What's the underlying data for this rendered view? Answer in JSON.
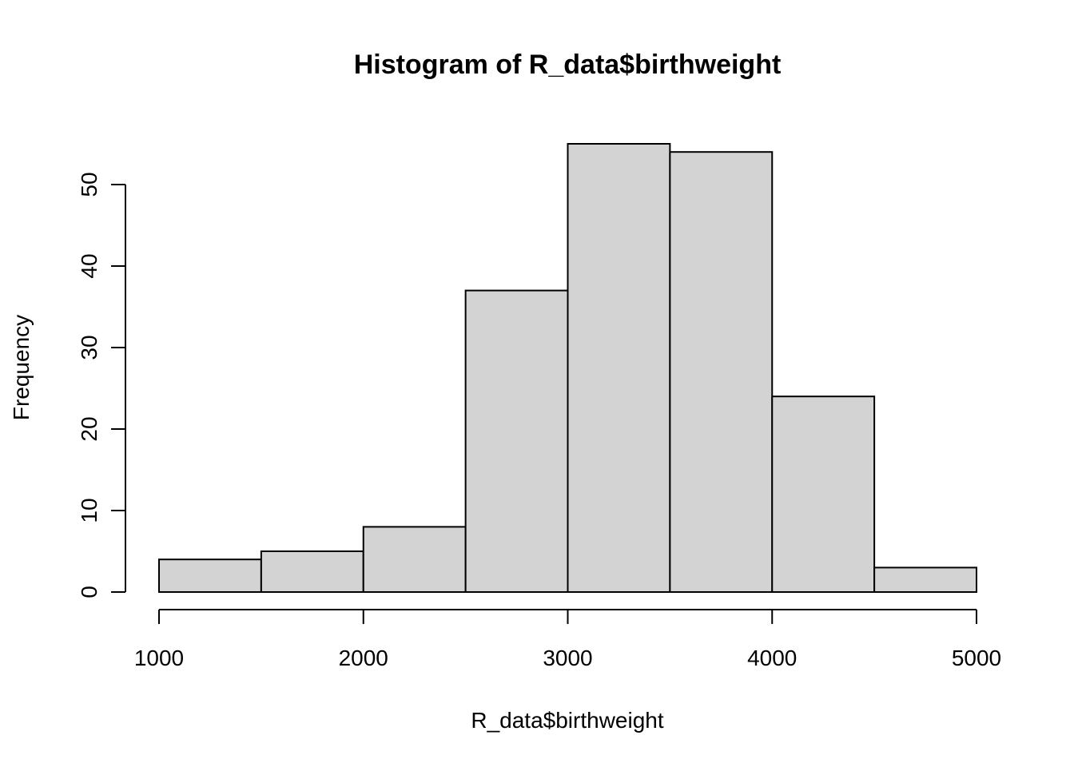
{
  "chart_data": {
    "type": "bar",
    "title": "Histogram of R_data$birthweight",
    "xlabel": "R_data$birthweight",
    "ylabel": "Frequency",
    "bin_edges": [
      1000,
      1500,
      2000,
      2500,
      3000,
      3500,
      4000,
      4500,
      5000
    ],
    "values": [
      4,
      5,
      8,
      37,
      55,
      54,
      24,
      3
    ],
    "xticks": [
      1000,
      2000,
      3000,
      4000,
      5000
    ],
    "yticks": [
      0,
      10,
      20,
      30,
      40,
      50
    ],
    "xlim": [
      1000,
      5000
    ],
    "ylim": [
      0,
      55
    ],
    "bar_color": "#d3d3d3",
    "grid": false
  }
}
